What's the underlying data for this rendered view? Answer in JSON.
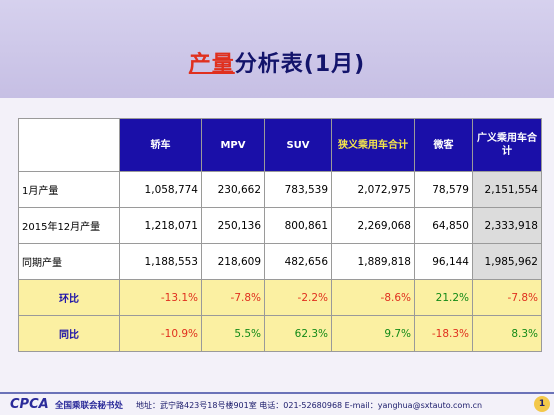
{
  "title": {
    "highlight": "产量",
    "rest": "分析表(1月)"
  },
  "table": {
    "headers": [
      "轿车",
      "MPV",
      "SUV",
      "狭义乘用车合计",
      "微客",
      "广义乘用车合计"
    ],
    "rows": [
      {
        "label": "1月产量",
        "cells": [
          "1,058,774",
          "230,662",
          "783,539",
          "2,072,975",
          "78,579",
          "2,151,554"
        ]
      },
      {
        "label": "2015年12月产量",
        "cells": [
          "1,218,071",
          "250,136",
          "800,861",
          "2,269,068",
          "64,850",
          "2,333,918"
        ]
      },
      {
        "label": "同期产量",
        "cells": [
          "1,188,553",
          "218,609",
          "482,656",
          "1,889,818",
          "96,144",
          "1,985,962"
        ]
      }
    ],
    "ratio_rows": [
      {
        "label": "环比",
        "cells": [
          "-13.1%",
          "-7.8%",
          "-2.2%",
          "-8.6%",
          "21.2%",
          "-7.8%"
        ]
      },
      {
        "label": "同比",
        "cells": [
          "-10.9%",
          "5.5%",
          "62.3%",
          "9.7%",
          "-18.3%",
          "8.3%"
        ]
      }
    ]
  },
  "colors": {
    "header_bg": "#1a0fa8",
    "negative": "#e0301e",
    "positive": "#138a17",
    "ratio_row_bg": "#fbf0a2"
  },
  "footer": {
    "logo": "CPCA",
    "org": "全国乘联会秘书处",
    "contact": "地址：武宁路423号18号楼901室   电话：021-52680968   E-mail：yanghua@sxtauto.com.cn",
    "page": "1"
  }
}
